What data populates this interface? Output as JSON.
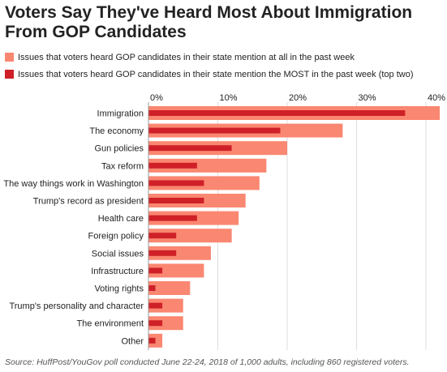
{
  "title": "Voters Say They've Heard Most About Immigration From GOP Candidates",
  "legend": {
    "items": [
      {
        "label": "Issues that voters heard GOP candidates in their state mention at all in the past week",
        "color": "#fa8771"
      },
      {
        "label": "Issues that voters heard GOP candidates in their state mention the MOST in the past week (top two)",
        "color": "#cf2028"
      }
    ]
  },
  "source": "Source: HuffPost/YouGov poll conducted June 22-24, 2018 of 1,000 adults, including 860 registered voters.",
  "chart_data": {
    "type": "bar",
    "orientation": "horizontal",
    "categories": [
      "Immigration",
      "The economy",
      "Gun policies",
      "Tax reform",
      "The way things work in Washington",
      "Trump's record as president",
      "Health care",
      "Foreign policy",
      "Social issues",
      "Infrastructure",
      "Voting rights",
      "Trump's personality and character",
      "The environment",
      "Other"
    ],
    "series": [
      {
        "name": "Issues that voters heard GOP candidates in their state mention at all in the past week",
        "values": [
          42,
          28,
          20,
          17,
          16,
          14,
          13,
          12,
          9,
          8,
          6,
          5,
          5,
          2
        ],
        "color": "#fa8771"
      },
      {
        "name": "Issues that voters heard GOP candidates in their state mention the MOST in the past week (top two)",
        "values": [
          37,
          19,
          12,
          7,
          8,
          8,
          7,
          4,
          4,
          2,
          1,
          2,
          2,
          1
        ],
        "color": "#cf2028"
      }
    ],
    "x_ticks": [
      "0%",
      "10%",
      "20%",
      "30%",
      "40%"
    ],
    "xlim": [
      0,
      42
    ],
    "grid": true,
    "axis_position": "top"
  }
}
